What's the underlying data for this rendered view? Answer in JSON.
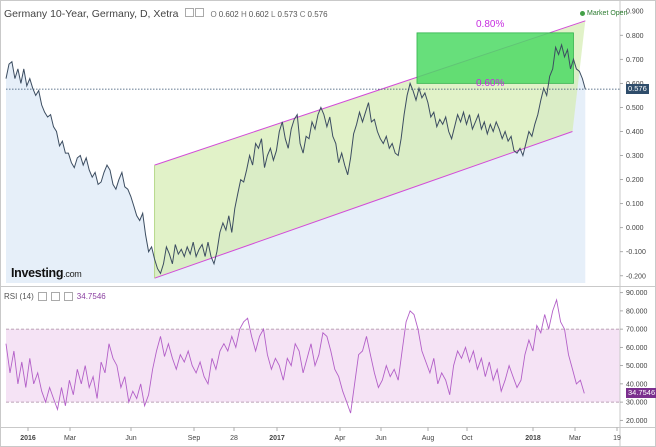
{
  "header": {
    "title": "Germany 10-Year, Germany, D, Xetra",
    "ohlc": [
      {
        "k": "O",
        "v": "0.602"
      },
      {
        "k": "H",
        "v": "0.602"
      },
      {
        "k": "L",
        "v": "0.573"
      },
      {
        "k": "C",
        "v": "0.576"
      }
    ],
    "market_status": "Market Open"
  },
  "logo": {
    "main": "Investing",
    "suffix": ".com"
  },
  "price_axis": {
    "ticks": [
      "0.900",
      "0.800",
      "0.700",
      "0.600",
      "0.500",
      "0.400",
      "0.300",
      "0.200",
      "0.100",
      "0.000",
      "-0.100",
      "-0.200"
    ],
    "current_label": "0.576",
    "current_value": 0.576
  },
  "rsi": {
    "label": "RSI (14)",
    "value": "34.7546",
    "ticks": [
      "90.000",
      "80.000",
      "70.000",
      "60.000",
      "50.000",
      "40.000",
      "30.000",
      "20.000"
    ],
    "upper_band": 70,
    "lower_band": 30
  },
  "annotations": {
    "channel_pct": "0.80%",
    "channel_pct_mid": "0.60%"
  },
  "time_axis": {
    "labels": [
      "2016",
      "Mar",
      "Jun",
      "Sep",
      "28",
      "2017",
      "Apr",
      "Jun",
      "Aug",
      "Oct",
      "2018",
      "Mar",
      "19"
    ]
  },
  "colors": {
    "price_line": "#3c4d61",
    "channel": "#d24bd8",
    "channel_fill": "#d4edb0",
    "box_fill": "#4cd964",
    "rsi_line": "#b360c8",
    "rsi_band": "#f3dcf2",
    "price_badge": "#2f4d6b",
    "rsi_badge": "#7b2f8e"
  },
  "chart_data": {
    "type": "line",
    "price_series": [
      [
        0,
        0.62
      ],
      [
        3,
        0.68
      ],
      [
        6,
        0.69
      ],
      [
        9,
        0.62
      ],
      [
        12,
        0.66
      ],
      [
        15,
        0.6
      ],
      [
        18,
        0.66
      ],
      [
        21,
        0.59
      ],
      [
        24,
        0.62
      ],
      [
        27,
        0.58
      ],
      [
        30,
        0.55
      ],
      [
        33,
        0.57
      ],
      [
        36,
        0.51
      ],
      [
        39,
        0.48
      ],
      [
        42,
        0.46
      ],
      [
        45,
        0.47
      ],
      [
        48,
        0.42
      ],
      [
        51,
        0.4
      ],
      [
        54,
        0.34
      ],
      [
        57,
        0.36
      ],
      [
        60,
        0.31
      ],
      [
        63,
        0.31
      ],
      [
        66,
        0.27
      ],
      [
        69,
        0.25
      ],
      [
        72,
        0.29
      ],
      [
        75,
        0.3
      ],
      [
        78,
        0.26
      ],
      [
        81,
        0.29
      ],
      [
        84,
        0.24
      ],
      [
        87,
        0.21
      ],
      [
        90,
        0.23
      ],
      [
        93,
        0.18
      ],
      [
        96,
        0.19
      ],
      [
        99,
        0.23
      ],
      [
        102,
        0.26
      ],
      [
        105,
        0.24
      ],
      [
        108,
        0.18
      ],
      [
        111,
        0.16
      ],
      [
        114,
        0.2
      ],
      [
        117,
        0.23
      ],
      [
        120,
        0.17
      ],
      [
        123,
        0.16
      ],
      [
        126,
        0.13
      ],
      [
        129,
        0.09
      ],
      [
        132,
        0.05
      ],
      [
        135,
        0.03
      ],
      [
        138,
        0.06
      ],
      [
        141,
        -0.03
      ],
      [
        144,
        -0.1
      ],
      [
        147,
        -0.08
      ],
      [
        150,
        -0.13
      ],
      [
        153,
        -0.17
      ],
      [
        156,
        -0.19
      ],
      [
        159,
        -0.15
      ],
      [
        162,
        -0.08
      ],
      [
        165,
        -0.11
      ],
      [
        168,
        -0.15
      ],
      [
        171,
        -0.07
      ],
      [
        174,
        -0.11
      ],
      [
        177,
        -0.09
      ],
      [
        180,
        -0.12
      ],
      [
        183,
        -0.08
      ],
      [
        186,
        -0.11
      ],
      [
        189,
        -0.06
      ],
      [
        192,
        -0.12
      ],
      [
        195,
        -0.09
      ],
      [
        198,
        -0.07
      ],
      [
        201,
        -0.12
      ],
      [
        204,
        -0.06
      ],
      [
        207,
        -0.12
      ],
      [
        210,
        -0.15
      ],
      [
        213,
        -0.1
      ],
      [
        216,
        -0.02
      ],
      [
        219,
        0.02
      ],
      [
        222,
        -0.01
      ],
      [
        225,
        0.05
      ],
      [
        228,
        -0.02
      ],
      [
        231,
        0.08
      ],
      [
        234,
        0.14
      ],
      [
        237,
        0.2
      ],
      [
        240,
        0.19
      ],
      [
        243,
        0.24
      ],
      [
        246,
        0.3
      ],
      [
        249,
        0.26
      ],
      [
        252,
        0.35
      ],
      [
        255,
        0.33
      ],
      [
        258,
        0.37
      ],
      [
        261,
        0.25
      ],
      [
        264,
        0.3
      ],
      [
        267,
        0.33
      ],
      [
        270,
        0.28
      ],
      [
        273,
        0.32
      ],
      [
        276,
        0.4
      ],
      [
        279,
        0.44
      ],
      [
        282,
        0.37
      ],
      [
        285,
        0.33
      ],
      [
        288,
        0.41
      ],
      [
        291,
        0.45
      ],
      [
        294,
        0.47
      ],
      [
        297,
        0.35
      ],
      [
        300,
        0.31
      ],
      [
        303,
        0.38
      ],
      [
        306,
        0.37
      ],
      [
        309,
        0.44
      ],
      [
        312,
        0.41
      ],
      [
        315,
        0.47
      ],
      [
        318,
        0.5
      ],
      [
        321,
        0.47
      ],
      [
        324,
        0.42
      ],
      [
        327,
        0.46
      ],
      [
        330,
        0.38
      ],
      [
        333,
        0.35
      ],
      [
        336,
        0.27
      ],
      [
        339,
        0.31
      ],
      [
        342,
        0.26
      ],
      [
        345,
        0.22
      ],
      [
        348,
        0.29
      ],
      [
        351,
        0.39
      ],
      [
        354,
        0.43
      ],
      [
        357,
        0.48
      ],
      [
        360,
        0.44
      ],
      [
        363,
        0.48
      ],
      [
        366,
        0.52
      ],
      [
        369,
        0.44
      ],
      [
        372,
        0.45
      ],
      [
        375,
        0.4
      ],
      [
        378,
        0.37
      ],
      [
        381,
        0.35
      ],
      [
        384,
        0.38
      ],
      [
        387,
        0.33
      ],
      [
        390,
        0.35
      ],
      [
        393,
        0.31
      ],
      [
        396,
        0.3
      ],
      [
        399,
        0.37
      ],
      [
        402,
        0.47
      ],
      [
        405,
        0.55
      ],
      [
        408,
        0.6
      ],
      [
        411,
        0.57
      ],
      [
        414,
        0.53
      ],
      [
        417,
        0.58
      ],
      [
        420,
        0.54
      ],
      [
        423,
        0.56
      ],
      [
        426,
        0.52
      ],
      [
        429,
        0.46
      ],
      [
        432,
        0.48
      ],
      [
        435,
        0.42
      ],
      [
        438,
        0.45
      ],
      [
        441,
        0.43
      ],
      [
        444,
        0.46
      ],
      [
        447,
        0.4
      ],
      [
        450,
        0.37
      ],
      [
        453,
        0.42
      ],
      [
        456,
        0.47
      ],
      [
        459,
        0.44
      ],
      [
        462,
        0.48
      ],
      [
        465,
        0.43
      ],
      [
        468,
        0.47
      ],
      [
        471,
        0.41
      ],
      [
        474,
        0.44
      ],
      [
        477,
        0.47
      ],
      [
        480,
        0.41
      ],
      [
        483,
        0.44
      ],
      [
        486,
        0.39
      ],
      [
        489,
        0.43
      ],
      [
        492,
        0.4
      ],
      [
        495,
        0.44
      ],
      [
        498,
        0.41
      ],
      [
        501,
        0.37
      ],
      [
        504,
        0.4
      ],
      [
        507,
        0.36
      ],
      [
        510,
        0.38
      ],
      [
        513,
        0.32
      ],
      [
        516,
        0.31
      ],
      [
        519,
        0.33
      ],
      [
        522,
        0.3
      ],
      [
        525,
        0.35
      ],
      [
        528,
        0.4
      ],
      [
        531,
        0.38
      ],
      [
        534,
        0.43
      ],
      [
        537,
        0.47
      ],
      [
        540,
        0.53
      ],
      [
        543,
        0.58
      ],
      [
        546,
        0.55
      ],
      [
        549,
        0.63
      ],
      [
        552,
        0.66
      ],
      [
        555,
        0.75
      ],
      [
        558,
        0.72
      ],
      [
        561,
        0.76
      ],
      [
        564,
        0.71
      ],
      [
        567,
        0.74
      ],
      [
        570,
        0.66
      ],
      [
        573,
        0.7
      ],
      [
        576,
        0.66
      ],
      [
        579,
        0.65
      ],
      [
        582,
        0.62
      ],
      [
        585,
        0.576
      ]
    ],
    "rsi_series": [
      [
        0,
        62
      ],
      [
        4,
        46
      ],
      [
        8,
        58
      ],
      [
        12,
        40
      ],
      [
        16,
        52
      ],
      [
        20,
        38
      ],
      [
        24,
        54
      ],
      [
        28,
        40
      ],
      [
        32,
        46
      ],
      [
        36,
        36
      ],
      [
        40,
        30
      ],
      [
        44,
        38
      ],
      [
        48,
        32
      ],
      [
        52,
        26
      ],
      [
        56,
        38
      ],
      [
        60,
        28
      ],
      [
        64,
        42
      ],
      [
        68,
        34
      ],
      [
        72,
        48
      ],
      [
        76,
        40
      ],
      [
        80,
        50
      ],
      [
        84,
        38
      ],
      [
        88,
        44
      ],
      [
        92,
        32
      ],
      [
        96,
        52
      ],
      [
        100,
        46
      ],
      [
        104,
        62
      ],
      [
        108,
        54
      ],
      [
        112,
        50
      ],
      [
        116,
        38
      ],
      [
        120,
        44
      ],
      [
        124,
        30
      ],
      [
        128,
        36
      ],
      [
        132,
        32
      ],
      [
        136,
        40
      ],
      [
        140,
        28
      ],
      [
        144,
        34
      ],
      [
        148,
        48
      ],
      [
        152,
        58
      ],
      [
        156,
        66
      ],
      [
        160,
        55
      ],
      [
        164,
        62
      ],
      [
        168,
        54
      ],
      [
        172,
        48
      ],
      [
        176,
        56
      ],
      [
        180,
        52
      ],
      [
        184,
        58
      ],
      [
        188,
        50
      ],
      [
        192,
        46
      ],
      [
        196,
        52
      ],
      [
        200,
        44
      ],
      [
        204,
        40
      ],
      [
        208,
        54
      ],
      [
        212,
        48
      ],
      [
        216,
        58
      ],
      [
        220,
        62
      ],
      [
        224,
        58
      ],
      [
        228,
        66
      ],
      [
        232,
        60
      ],
      [
        236,
        70
      ],
      [
        240,
        74
      ],
      [
        244,
        76
      ],
      [
        248,
        66
      ],
      [
        252,
        58
      ],
      [
        256,
        66
      ],
      [
        260,
        70
      ],
      [
        264,
        56
      ],
      [
        268,
        48
      ],
      [
        272,
        54
      ],
      [
        276,
        50
      ],
      [
        280,
        42
      ],
      [
        284,
        54
      ],
      [
        288,
        50
      ],
      [
        292,
        62
      ],
      [
        296,
        58
      ],
      [
        300,
        46
      ],
      [
        304,
        54
      ],
      [
        308,
        62
      ],
      [
        312,
        50
      ],
      [
        316,
        56
      ],
      [
        320,
        68
      ],
      [
        324,
        66
      ],
      [
        328,
        58
      ],
      [
        332,
        48
      ],
      [
        336,
        44
      ],
      [
        340,
        36
      ],
      [
        344,
        30
      ],
      [
        348,
        24
      ],
      [
        352,
        40
      ],
      [
        356,
        56
      ],
      [
        360,
        58
      ],
      [
        364,
        66
      ],
      [
        368,
        56
      ],
      [
        372,
        46
      ],
      [
        376,
        38
      ],
      [
        380,
        42
      ],
      [
        384,
        50
      ],
      [
        388,
        44
      ],
      [
        392,
        48
      ],
      [
        396,
        42
      ],
      [
        400,
        58
      ],
      [
        404,
        74
      ],
      [
        408,
        80
      ],
      [
        412,
        78
      ],
      [
        416,
        70
      ],
      [
        420,
        58
      ],
      [
        424,
        52
      ],
      [
        428,
        46
      ],
      [
        432,
        54
      ],
      [
        436,
        40
      ],
      [
        440,
        46
      ],
      [
        444,
        42
      ],
      [
        448,
        34
      ],
      [
        452,
        50
      ],
      [
        456,
        58
      ],
      [
        460,
        54
      ],
      [
        464,
        60
      ],
      [
        468,
        52
      ],
      [
        472,
        58
      ],
      [
        476,
        48
      ],
      [
        480,
        54
      ],
      [
        484,
        44
      ],
      [
        488,
        52
      ],
      [
        492,
        42
      ],
      [
        496,
        48
      ],
      [
        500,
        36
      ],
      [
        504,
        42
      ],
      [
        508,
        50
      ],
      [
        512,
        44
      ],
      [
        516,
        38
      ],
      [
        520,
        42
      ],
      [
        524,
        56
      ],
      [
        528,
        64
      ],
      [
        532,
        58
      ],
      [
        536,
        72
      ],
      [
        540,
        68
      ],
      [
        544,
        78
      ],
      [
        548,
        70
      ],
      [
        552,
        80
      ],
      [
        556,
        86
      ],
      [
        560,
        74
      ],
      [
        564,
        70
      ],
      [
        568,
        56
      ],
      [
        572,
        48
      ],
      [
        576,
        40
      ],
      [
        580,
        42
      ],
      [
        584,
        34.75
      ]
    ],
    "channel": {
      "lower": [
        [
          150,
          -0.21
        ],
        [
          572,
          0.4
        ]
      ],
      "upper": [
        [
          150,
          0.26
        ],
        [
          585,
          0.86
        ]
      ]
    },
    "box": {
      "x0": 415,
      "x1": 573,
      "y_top": 0.81,
      "y_bottom": 0.6
    },
    "ylim": [
      -0.23,
      0.93
    ],
    "rsi_ylim": [
      18,
      92
    ]
  }
}
